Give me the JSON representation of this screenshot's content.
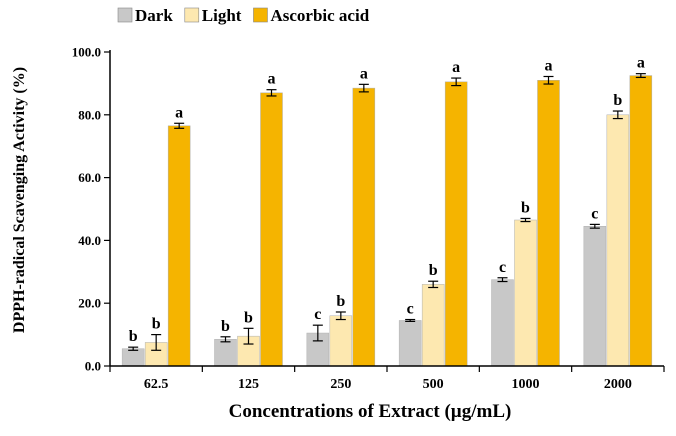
{
  "chart_data": {
    "type": "bar",
    "xlabel": "Concentrations of Extract (µg/mL)",
    "ylabel": "DPPH-radical Scavenging Activity (%)",
    "ylim": [
      0,
      100
    ],
    "yticks": [
      "0.0",
      "20.0",
      "40.0",
      "60.0",
      "80.0",
      "100.0"
    ],
    "categories": [
      "62.5",
      "125",
      "250",
      "500",
      "1000",
      "2000"
    ],
    "legend_position": "top",
    "series": [
      {
        "name": "Dark",
        "color": "#c8c8c8",
        "values": [
          5.5,
          8.5,
          10.5,
          14.5,
          27.5,
          44.5
        ],
        "errors": [
          0.5,
          0.8,
          2.5,
          0.3,
          0.6,
          0.6
        ],
        "letters": [
          "b",
          "b",
          "c",
          "c",
          "c",
          "c"
        ]
      },
      {
        "name": "Light",
        "color": "#fde8b0",
        "values": [
          7.5,
          9.5,
          16.0,
          26.0,
          46.5,
          80.0
        ],
        "errors": [
          2.5,
          2.5,
          1.2,
          1.0,
          0.5,
          1.2
        ],
        "letters": [
          "b",
          "b",
          "b",
          "b",
          "b",
          "b"
        ]
      },
      {
        "name": "Ascorbic acid",
        "color": "#f5b400",
        "values": [
          76.5,
          87.0,
          88.5,
          90.5,
          91.0,
          92.5
        ],
        "errors": [
          0.8,
          1.0,
          1.2,
          1.2,
          1.2,
          0.6
        ],
        "letters": [
          "a",
          "a",
          "a",
          "a",
          "a",
          "a"
        ]
      }
    ]
  }
}
